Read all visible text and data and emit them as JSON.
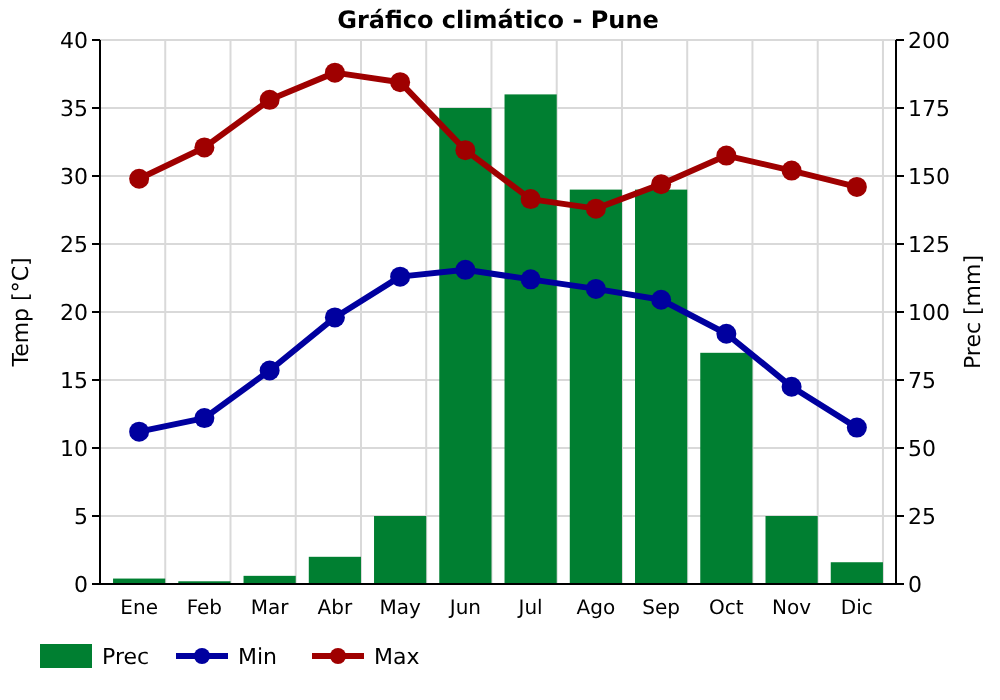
{
  "chart_data": {
    "type": "bar",
    "title": "Gráfico climático - Pune",
    "ylabel": "Temp [°C]",
    "y2label": "Prec [mm]",
    "categories": [
      "Ene",
      "Feb",
      "Mar",
      "Abr",
      "May",
      "Jun",
      "Jul",
      "Ago",
      "Sep",
      "Oct",
      "Nov",
      "Dic"
    ],
    "series": [
      {
        "name": "Prec",
        "axis": "y2",
        "color": "#007f31",
        "values": [
          2,
          1,
          3,
          10,
          25,
          175,
          180,
          145,
          145,
          85,
          25,
          8
        ]
      },
      {
        "name": "Min",
        "type": "line",
        "axis": "y",
        "color": "#00009f",
        "marker": "circle",
        "values": [
          11.2,
          12.2,
          15.7,
          19.6,
          22.6,
          23.1,
          22.4,
          21.7,
          20.9,
          18.4,
          14.5,
          11.5
        ]
      },
      {
        "name": "Max",
        "type": "line",
        "axis": "y",
        "color": "#9f0000",
        "marker": "circle",
        "values": [
          29.8,
          32.1,
          35.6,
          37.6,
          36.9,
          31.9,
          28.3,
          27.6,
          29.4,
          31.5,
          30.4,
          29.2
        ]
      }
    ],
    "ylim": [
      0,
      40
    ],
    "yticks": [
      0,
      5,
      10,
      15,
      20,
      25,
      30,
      35,
      40
    ],
    "y2lim": [
      0,
      200
    ],
    "y2ticks": [
      0,
      25,
      50,
      75,
      100,
      125,
      150,
      175,
      200
    ],
    "grid": true,
    "legend": "bottom left"
  }
}
